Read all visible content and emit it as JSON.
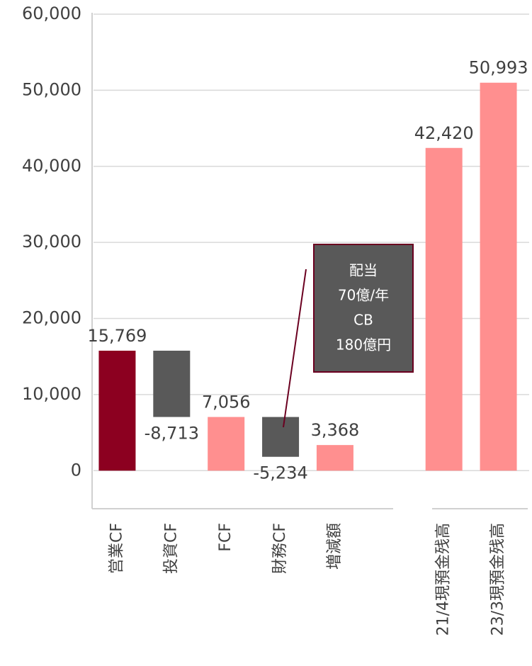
{
  "chart_data": {
    "type": "waterfall",
    "categories": [
      "営業CF",
      "投資CF",
      "FCF",
      "財務CF",
      "増減額",
      null,
      "21/4現預金残高",
      "23/3現預金残高"
    ],
    "values": [
      15769,
      -8713,
      7056,
      -5234,
      3368,
      null,
      42420,
      50993
    ],
    "value_labels": [
      "15,769",
      "-8,713",
      "7,056",
      "-5,234",
      "3,368",
      null,
      "42,420",
      "50,993"
    ],
    "colors": [
      "#8c0020",
      "#595959",
      "#ff8f8f",
      "#595959",
      "#ff8f8f",
      null,
      "#ff8f8f",
      "#ff8f8f"
    ],
    "ylim": [
      -5000,
      60000
    ],
    "yticks": [
      0,
      {
        "value": 10000,
        "label": "10,000"
      },
      {
        "value": 20000,
        "label": "20,000"
      },
      {
        "value": 30000,
        "label": "30,000"
      },
      {
        "value": 40000,
        "label": "40,000"
      },
      {
        "value": 50000,
        "label": "50,000"
      },
      {
        "value": 60000,
        "label": "60,000"
      }
    ],
    "grid": true,
    "annotation": [
      "配当",
      "70億/年",
      "CB",
      "180億円"
    ]
  }
}
